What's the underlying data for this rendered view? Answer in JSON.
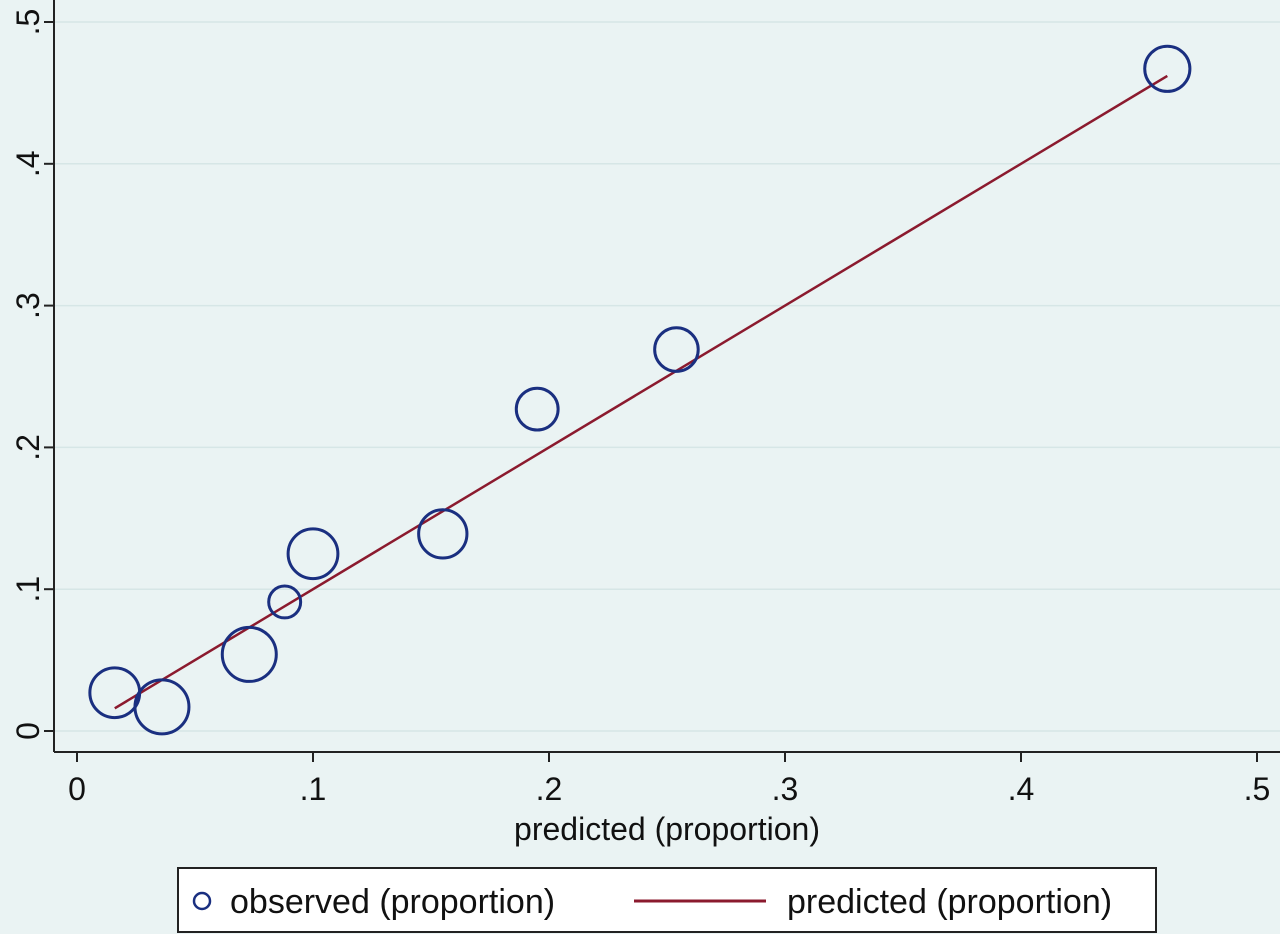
{
  "chart_data": {
    "type": "scatter",
    "title": "",
    "xlabel": "predicted (proportion)",
    "ylabel": "",
    "xlim": [
      0,
      0.5
    ],
    "ylim": [
      0,
      0.5
    ],
    "x_ticks": [
      0,
      0.1,
      0.2,
      0.3,
      0.4,
      0.5
    ],
    "x_tick_labels": [
      "0",
      ".1",
      ".2",
      ".3",
      ".4",
      ".5"
    ],
    "y_ticks": [
      0,
      0.1,
      0.2,
      0.3,
      0.4,
      0.5
    ],
    "y_tick_labels": [
      "0",
      ".1",
      ".2",
      ".3",
      ".4",
      ".5"
    ],
    "grid": "horizontal",
    "legend_position": "bottom",
    "series": [
      {
        "name": "observed (proportion)",
        "kind": "scatter-weighted",
        "color": "#1a2f80",
        "points": [
          {
            "x": 0.016,
            "y": 0.027,
            "weight": 0.85
          },
          {
            "x": 0.036,
            "y": 0.017,
            "weight": 1.0
          },
          {
            "x": 0.073,
            "y": 0.054,
            "weight": 1.0
          },
          {
            "x": 0.088,
            "y": 0.091,
            "weight": 0.35
          },
          {
            "x": 0.1,
            "y": 0.125,
            "weight": 0.85
          },
          {
            "x": 0.155,
            "y": 0.139,
            "weight": 0.8
          },
          {
            "x": 0.195,
            "y": 0.227,
            "weight": 0.6
          },
          {
            "x": 0.254,
            "y": 0.269,
            "weight": 0.65
          },
          {
            "x": 0.462,
            "y": 0.467,
            "weight": 0.7
          }
        ]
      },
      {
        "name": "predicted (proportion)",
        "kind": "line",
        "color": "#8b1a2e",
        "points": [
          {
            "x": 0.016,
            "y": 0.016
          },
          {
            "x": 0.462,
            "y": 0.462
          }
        ]
      }
    ]
  }
}
